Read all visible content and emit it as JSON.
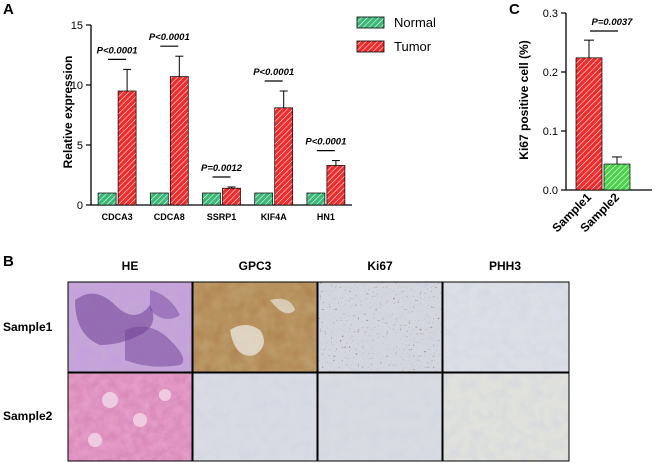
{
  "panel_labels": {
    "a": "A",
    "b": "B",
    "c": "C"
  },
  "colors": {
    "normal": "#3cb878",
    "tumor": "#e8282a",
    "tumor_c": "#ef2b2b",
    "normal_c": "#4cd14c"
  },
  "chart_data": [
    {
      "type": "bar",
      "ylabel": "Relative expression",
      "ylim": [
        0,
        15
      ],
      "yticks": [
        "0",
        "5",
        "10",
        "15"
      ],
      "categories": [
        "CDCA3",
        "CDCA8",
        "SSRP1",
        "KIF4A",
        "HN1"
      ],
      "series": [
        {
          "name": "Normal",
          "values": [
            1.0,
            1.0,
            1.0,
            1.0,
            1.0
          ],
          "errors": [
            0,
            0,
            0,
            0,
            0
          ]
        },
        {
          "name": "Tumor",
          "values": [
            9.5,
            10.7,
            1.4,
            8.1,
            3.3
          ],
          "errors": [
            1.8,
            1.7,
            0.1,
            1.4,
            0.4
          ]
        }
      ],
      "annotations": [
        "P<0.0001",
        "P<0.0001",
        "P=0.0012",
        "P<0.0001",
        "P<0.0001"
      ],
      "legend": "top-right",
      "pattern": "hatched"
    },
    {
      "type": "bar",
      "ylabel": "Ki67 positive cell (%)",
      "ylim": [
        0,
        0.3
      ],
      "yticks": [
        "0.0",
        "0.1",
        "0.2",
        "0.3"
      ],
      "categories": [
        "Sample1",
        "Sample2"
      ],
      "values": [
        0.224,
        0.044
      ],
      "errors": [
        0.03,
        0.012
      ],
      "annotation": "P=0.0037",
      "pattern": "hatched"
    }
  ],
  "panel_b": {
    "columns": [
      "HE",
      "GPC3",
      "Ki67",
      "PHH3"
    ],
    "rows": [
      "Sample1",
      "Sample2"
    ],
    "tiles": [
      [
        "he-stain-purple",
        "gpc3-stain-brown",
        "ki67-stain-dots",
        "phh3-stain-pale"
      ],
      [
        "he-stain-pink",
        "gpc3-stain-pale",
        "ki67-stain-pale",
        "phh3-stain-pale"
      ]
    ]
  }
}
